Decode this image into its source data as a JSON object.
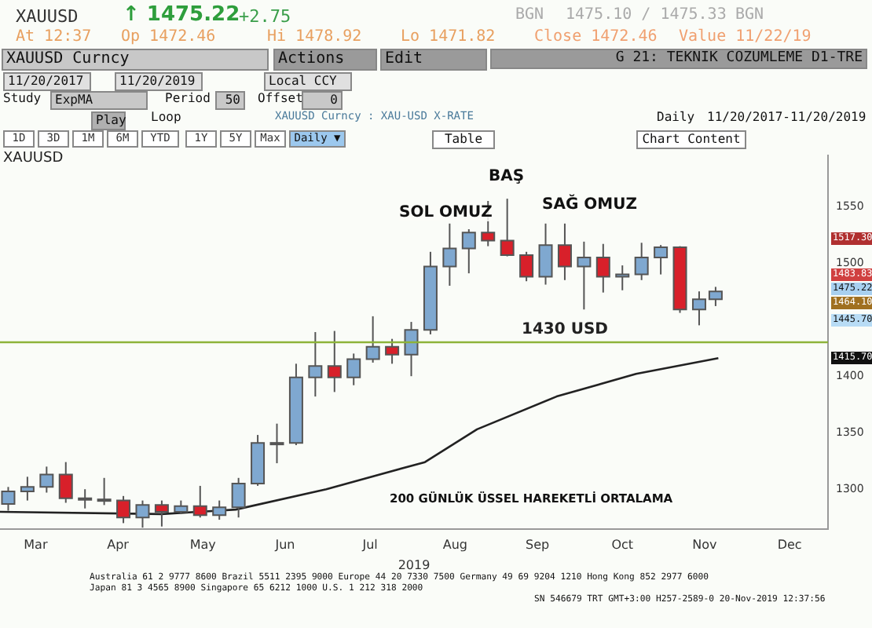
{
  "chart_data": {
    "type": "candlestick",
    "title": "XAUUSD",
    "xlabel": "2019",
    "x": [
      "2019-03-06",
      "2019-03-13",
      "2019-03-20",
      "2019-03-27",
      "2019-04-03",
      "2019-04-10",
      "2019-04-17",
      "2019-04-24",
      "2019-05-01",
      "2019-05-08",
      "2019-05-15",
      "2019-05-22",
      "2019-05-29",
      "2019-06-05",
      "2019-06-12",
      "2019-06-19",
      "2019-06-26",
      "2019-07-03",
      "2019-07-10",
      "2019-07-17",
      "2019-07-24",
      "2019-07-31",
      "2019-08-07",
      "2019-08-14",
      "2019-08-21",
      "2019-08-28",
      "2019-09-04",
      "2019-09-11",
      "2019-09-18",
      "2019-09-25",
      "2019-10-02",
      "2019-10-09",
      "2019-10-16",
      "2019-10-23",
      "2019-10-30",
      "2019-11-06",
      "2019-11-13",
      "2019-11-19"
    ],
    "ohlc": [
      [
        1287,
        1302,
        1281,
        1298
      ],
      [
        1298,
        1311,
        1290,
        1302
      ],
      [
        1302,
        1320,
        1297,
        1313
      ],
      [
        1313,
        1324,
        1288,
        1292
      ],
      [
        1292,
        1300,
        1283,
        1291
      ],
      [
        1291,
        1310,
        1286,
        1290
      ],
      [
        1290,
        1294,
        1270,
        1275
      ],
      [
        1275,
        1290,
        1266,
        1286
      ],
      [
        1286,
        1290,
        1267,
        1280
      ],
      [
        1280,
        1290,
        1278,
        1285
      ],
      [
        1285,
        1303,
        1275,
        1277
      ],
      [
        1277,
        1290,
        1273,
        1284
      ],
      [
        1284,
        1310,
        1275,
        1305
      ],
      [
        1305,
        1348,
        1303,
        1341
      ],
      [
        1341,
        1358,
        1323,
        1341
      ],
      [
        1341,
        1411,
        1339,
        1399
      ],
      [
        1399,
        1439,
        1382,
        1409
      ],
      [
        1409,
        1440,
        1386,
        1399
      ],
      [
        1399,
        1420,
        1392,
        1415
      ],
      [
        1415,
        1453,
        1412,
        1426
      ],
      [
        1426,
        1433,
        1411,
        1419
      ],
      [
        1419,
        1448,
        1400,
        1441
      ],
      [
        1441,
        1510,
        1437,
        1497
      ],
      [
        1497,
        1535,
        1480,
        1513
      ],
      [
        1513,
        1530,
        1491,
        1527
      ],
      [
        1527,
        1555,
        1515,
        1520
      ],
      [
        1520,
        1557,
        1506,
        1507
      ],
      [
        1507,
        1510,
        1484,
        1488
      ],
      [
        1488,
        1535,
        1481,
        1516
      ],
      [
        1516,
        1535,
        1485,
        1497
      ],
      [
        1497,
        1519,
        1459,
        1505
      ],
      [
        1505,
        1517,
        1474,
        1488
      ],
      [
        1488,
        1498,
        1476,
        1490
      ],
      [
        1490,
        1518,
        1485,
        1505
      ],
      [
        1505,
        1516,
        1490,
        1514
      ],
      [
        1514,
        1515,
        1456,
        1459
      ],
      [
        1459,
        1475,
        1445,
        1468
      ],
      [
        1468,
        1479,
        1462,
        1475
      ]
    ],
    "series": [
      {
        "type": "line",
        "color": "#222222",
        "x": [
          "2019-03-03",
          "2019-05-01",
          "2019-05-28",
          "2019-06-30",
          "2019-08-05",
          "2019-08-24",
          "2019-09-22",
          "2019-10-21",
          "2019-11-20"
        ],
        "values": [
          1280,
          1278,
          1282,
          1300,
          1324,
          1353,
          1382,
          1402,
          1416
        ]
      }
    ],
    "xlim": [
      "2019-03-03",
      "2019-12-30"
    ],
    "xticks": [
      {
        "value": "2019-03-16",
        "label": "Mar"
      },
      {
        "value": "2019-04-15",
        "label": "Apr"
      },
      {
        "value": "2019-05-16",
        "label": "May"
      },
      {
        "value": "2019-06-15",
        "label": "Jun"
      },
      {
        "value": "2019-07-16",
        "label": "Jul"
      },
      {
        "value": "2019-08-16",
        "label": "Aug"
      },
      {
        "value": "2019-09-15",
        "label": "Sep"
      },
      {
        "value": "2019-10-16",
        "label": "Oct"
      },
      {
        "value": "2019-11-15",
        "label": "Nov"
      },
      {
        "value": "2019-12-16",
        "label": "Dec"
      }
    ],
    "ylim": [
      1265,
      1595
    ],
    "yticks": [
      1300,
      1350,
      1400,
      1500,
      1550
    ],
    "ref_lines": [
      {
        "axis": "y",
        "value": 1430,
        "label": "1430 USD",
        "color": "#8db33a"
      }
    ],
    "annotations": [
      "XAUUSD",
      "↑ 1475.22",
      "+2.75",
      "BGN",
      "1475.10 / 1475.33",
      "BGN",
      "At 12:37",
      "Op 1472.46",
      "Hi 1478.92",
      "Lo 1471.82",
      "Close 1472.46",
      "Value 11/22/19",
      "XAUUSD  Curncy",
      "Actions",
      "Edit",
      "G 21: TEKNIK COZUMLEME D1-TRE",
      "11/20/2017",
      "11/20/2019",
      "Local CCY",
      "Study",
      "ExpMA",
      "Period",
      "50",
      "Offset",
      "0",
      "Play",
      "Loop",
      "XAUUSD  Curncy : XAU-USD X-RATE",
      "Daily",
      "11/20/2017-11/20/2019",
      "1D",
      "3D",
      "1M",
      "6M",
      "YTD",
      "1Y",
      "5Y",
      "Max",
      "Daily ▼",
      "Table",
      "Chart Content",
      "SOL OMUZ",
      "BAŞ",
      "SAĞ OMUZ",
      "200 GÜNLÜK ÜSSEL HAREKETLİ ORTALAMA",
      "1517.30",
      "1483.83",
      "1475.22",
      "1464.10",
      "1445.70",
      "1415.70",
      "Australia 61 2 9777 8600 Brazil 5511 2395 9000 Europe 44 20 7330 7500 Germany 49 69 9204 1210 Hong Kong 852 2977 6000",
      "Japan 81 3 4565 8900       Singapore 65 6212 1000       U.S. 1 212 318 2000",
      "SN 546679 TRT  GMT+3:00 H257-2589-0 20-Nov-2019 12:37:56"
    ]
  }
}
